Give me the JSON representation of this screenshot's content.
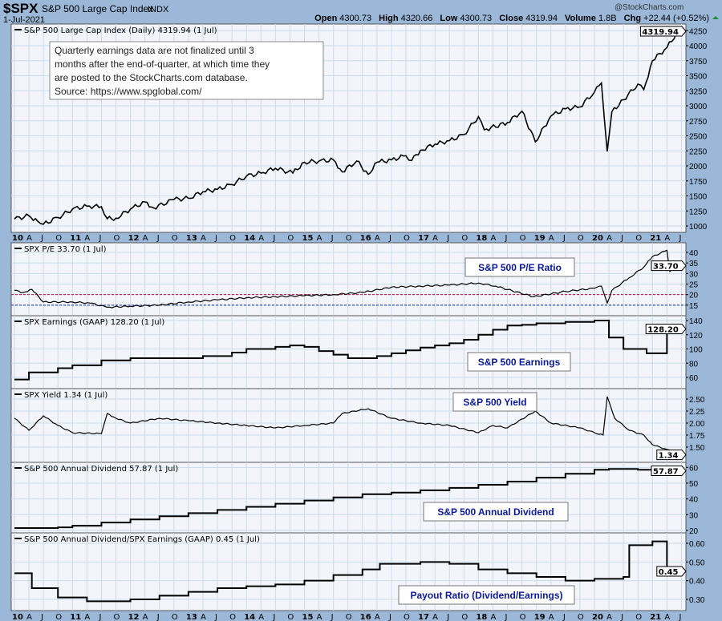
{
  "header": {
    "symbol": "$SPX",
    "name": "S&P 500 Large Cap Index",
    "exchange": "INDX",
    "date": "1-Jul-2021",
    "watermark": "@StockCharts.com",
    "open_label": "Open",
    "open": "4300.73",
    "high_label": "High",
    "high": "4320.66",
    "low_label": "Low",
    "low": "4300.73",
    "close_label": "Close",
    "close": "4319.94",
    "volume_label": "Volume",
    "volume": "1.8B",
    "chg_label": "Chg",
    "chg": "+22.44 (+0.52%)"
  },
  "note": [
    "Quarterly earnings data are not finalized until 3",
    "months after the end-of-quarter, at which time they",
    "are posted to the StockCharts.com database.",
    "Source: https://www.spglobal.com/"
  ],
  "chart_data": [
    {
      "id": "price",
      "type": "line",
      "title": "S&P 500 Large Cap Index (Daily) 4319.94 (1 Jul)",
      "legend": "",
      "last_label": "4319.94",
      "ylim": [
        950,
        4350
      ],
      "ticks": [
        1000,
        1250,
        1500,
        1750,
        2000,
        2250,
        2500,
        2750,
        3000,
        3250,
        3500,
        3750,
        4000,
        4250
      ],
      "tick_labels": [
        "1000",
        "1250",
        "1500",
        "1750",
        "2000",
        "2250",
        "2500",
        "2750",
        "3000",
        "3250",
        "3500",
        "3750",
        "4000",
        "4250"
      ],
      "x": [
        2010.0,
        2010.25,
        2010.4,
        2010.5,
        2010.75,
        2011.0,
        2011.25,
        2011.5,
        2011.6,
        2011.75,
        2012.0,
        2012.25,
        2012.4,
        2012.75,
        2013.0,
        2013.25,
        2013.5,
        2013.75,
        2014.0,
        2014.25,
        2014.5,
        2014.8,
        2015.0,
        2015.25,
        2015.5,
        2015.65,
        2015.9,
        2016.1,
        2016.25,
        2016.5,
        2016.75,
        2016.85,
        2017.0,
        2017.25,
        2017.5,
        2017.75,
        2018.0,
        2018.1,
        2018.5,
        2018.75,
        2018.98,
        2019.25,
        2019.5,
        2019.75,
        2020.0,
        2020.12,
        2020.22,
        2020.3,
        2020.5,
        2020.75,
        2020.85,
        2021.0,
        2021.25,
        2021.5
      ],
      "y": [
        1115,
        1170,
        1080,
        1030,
        1140,
        1280,
        1330,
        1320,
        1120,
        1130,
        1280,
        1400,
        1300,
        1440,
        1460,
        1570,
        1610,
        1690,
        1830,
        1880,
        1960,
        1880,
        2060,
        2080,
        2100,
        1900,
        2080,
        1860,
        2060,
        2100,
        2170,
        2090,
        2260,
        2360,
        2420,
        2520,
        2820,
        2600,
        2720,
        2910,
        2400,
        2830,
        2950,
        2980,
        3230,
        3380,
        2240,
        2900,
        3100,
        3360,
        3270,
        3750,
        3970,
        4320
      ]
    },
    {
      "id": "pe",
      "type": "line",
      "title": "SPX P/E 33.70 (1 Jul)",
      "legend": "S&P 500 P/E Ratio",
      "last_label": "33.70",
      "ylim": [
        10,
        45
      ],
      "ticks": [
        15,
        20,
        25,
        30,
        35,
        40
      ],
      "tick_labels": [
        "15",
        "20",
        "25",
        "30",
        "35",
        "40"
      ],
      "reference_lines": [
        {
          "value": 20,
          "color": "#c0143c"
        },
        {
          "value": 15,
          "color": "#1a2a8a"
        },
        {
          "value": 10,
          "color": "#000000"
        }
      ],
      "x": [
        2010.0,
        2010.15,
        2010.3,
        2010.5,
        2011.0,
        2011.3,
        2011.6,
        2012.0,
        2012.5,
        2013.0,
        2013.5,
        2014.0,
        2014.5,
        2015.0,
        2015.5,
        2016.0,
        2016.5,
        2017.0,
        2017.5,
        2018.0,
        2018.3,
        2018.95,
        2019.5,
        2020.0,
        2020.12,
        2020.22,
        2020.3,
        2020.6,
        2020.85,
        2021.0,
        2021.25,
        2021.3,
        2021.5
      ],
      "y": [
        22,
        21,
        22.5,
        16.5,
        16.5,
        16,
        14,
        14.5,
        15,
        16.5,
        17.5,
        18.5,
        19,
        19.5,
        20,
        21,
        23.5,
        24,
        24.5,
        25.5,
        24,
        19,
        21.5,
        23,
        24,
        16,
        22,
        28,
        33,
        38,
        41,
        31,
        33.7
      ]
    },
    {
      "id": "earnings",
      "type": "step",
      "title": "SPX Earnings (GAAP) 128.20 (1 Jul)",
      "legend": "S&P 500 Earnings",
      "last_label": "128.20",
      "ylim": [
        50,
        145
      ],
      "ticks": [
        60,
        80,
        100,
        120,
        140
      ],
      "tick_labels": [
        "60",
        "80",
        "100",
        "120",
        "140"
      ],
      "x": [
        2010.0,
        2010.25,
        2010.75,
        2011.0,
        2011.5,
        2012.0,
        2013.0,
        2013.25,
        2013.75,
        2014.0,
        2014.5,
        2014.75,
        2015.0,
        2015.25,
        2015.5,
        2015.75,
        2016.25,
        2016.5,
        2016.75,
        2017.0,
        2017.25,
        2017.5,
        2017.75,
        2018.0,
        2018.25,
        2018.5,
        2018.75,
        2019.0,
        2019.5,
        2020.0,
        2020.25,
        2020.5,
        2020.9,
        2021.25,
        2021.5
      ],
      "y": [
        57,
        67,
        73,
        77,
        84,
        87,
        87,
        90,
        95,
        100,
        103,
        105,
        103,
        97,
        92,
        87,
        90,
        94,
        98,
        102,
        105,
        108,
        113,
        120,
        127,
        133,
        134,
        136,
        138,
        140,
        116,
        100,
        94,
        128.2,
        128.2
      ]
    },
    {
      "id": "yield",
      "type": "line",
      "title": "SPX Yield 1.34 (1 Jul)",
      "legend": "S&P 500 Yield",
      "last_label": "1.34",
      "ylim": [
        1.3,
        2.7
      ],
      "ticks": [
        1.5,
        1.75,
        2.0,
        2.25,
        2.5
      ],
      "tick_labels": [
        "1.50",
        "1.75",
        "2.00",
        "2.25",
        "2.50"
      ],
      "x": [
        2010.0,
        2010.25,
        2010.5,
        2010.75,
        2011.0,
        2011.5,
        2011.6,
        2011.75,
        2012.0,
        2012.5,
        2013.0,
        2013.5,
        2014.0,
        2014.5,
        2015.0,
        2015.5,
        2015.65,
        2016.1,
        2016.5,
        2017.0,
        2017.5,
        2018.0,
        2018.25,
        2018.5,
        2018.98,
        2019.25,
        2019.75,
        2020.0,
        2020.15,
        2020.22,
        2020.35,
        2020.6,
        2020.85,
        2021.0,
        2021.25,
        2021.5
      ],
      "y": [
        2.1,
        1.85,
        2.15,
        1.95,
        1.8,
        1.78,
        2.2,
        2.1,
        2.0,
        2.1,
        2.05,
        2.0,
        1.95,
        1.9,
        1.95,
        2.0,
        2.2,
        2.3,
        2.1,
        2.0,
        1.95,
        1.8,
        1.95,
        1.9,
        2.25,
        2.0,
        1.9,
        1.8,
        1.75,
        2.55,
        2.1,
        1.85,
        1.75,
        1.55,
        1.45,
        1.34
      ]
    },
    {
      "id": "dividend",
      "type": "step",
      "title": "S&P 500 Annual Dividend 57.87 (1 Jul)",
      "legend": "S&P 500 Annual Dividend",
      "last_label": "57.87",
      "ylim": [
        19,
        63
      ],
      "ticks": [
        20,
        30,
        40,
        50,
        60
      ],
      "tick_labels": [
        "20",
        "30",
        "40",
        "50",
        "60"
      ],
      "x": [
        2010.0,
        2010.75,
        2011.0,
        2011.5,
        2012.0,
        2012.5,
        2013.0,
        2013.5,
        2014.0,
        2014.5,
        2015.0,
        2015.5,
        2016.0,
        2016.5,
        2017.0,
        2017.5,
        2018.0,
        2018.5,
        2019.0,
        2019.5,
        2020.0,
        2020.25,
        2020.75,
        2021.0,
        2021.5
      ],
      "y": [
        21.5,
        22,
        23,
        25,
        27,
        29,
        31,
        33,
        35,
        37,
        39,
        41,
        43,
        44,
        45.5,
        47,
        49,
        51,
        53.5,
        56,
        58.5,
        59,
        58.5,
        58,
        57.87
      ]
    },
    {
      "id": "payout",
      "type": "step",
      "title": "S&P 500 Annual Dividend/SPX Earnings (GAAP) 0.45 (1 Jul)",
      "legend": "Payout Ratio (Dividend/Earnings)",
      "last_label": "0.45",
      "ylim": [
        0.25,
        0.65
      ],
      "ticks": [
        0.3,
        0.4,
        0.5,
        0.6
      ],
      "tick_labels": [
        "0.30",
        "0.40",
        "0.50",
        "0.60"
      ],
      "x": [
        2010.0,
        2010.3,
        2010.75,
        2011.25,
        2012.0,
        2012.5,
        2013.0,
        2013.5,
        2014.0,
        2014.5,
        2015.0,
        2015.5,
        2016.0,
        2016.3,
        2017.0,
        2017.5,
        2018.0,
        2018.5,
        2019.0,
        2019.5,
        2020.0,
        2020.5,
        2020.6,
        2021.0,
        2021.25,
        2021.5
      ],
      "y": [
        0.44,
        0.36,
        0.31,
        0.29,
        0.3,
        0.32,
        0.34,
        0.36,
        0.37,
        0.38,
        0.4,
        0.43,
        0.46,
        0.49,
        0.5,
        0.49,
        0.46,
        0.44,
        0.42,
        0.4,
        0.41,
        0.42,
        0.59,
        0.61,
        0.45,
        0.45
      ]
    }
  ],
  "x_axis": {
    "years": [
      "10",
      "11",
      "12",
      "13",
      "14",
      "15",
      "16",
      "17",
      "18",
      "19",
      "20",
      "21"
    ],
    "months": [
      "A",
      "J",
      "O"
    ],
    "range": [
      2010.0,
      2021.5
    ]
  },
  "colors": {
    "background": "#9bb8d8",
    "plot": "#f3f5fa",
    "grid": "#c9dcec",
    "line": "#000000",
    "legend_text": "#0a1a9a"
  }
}
